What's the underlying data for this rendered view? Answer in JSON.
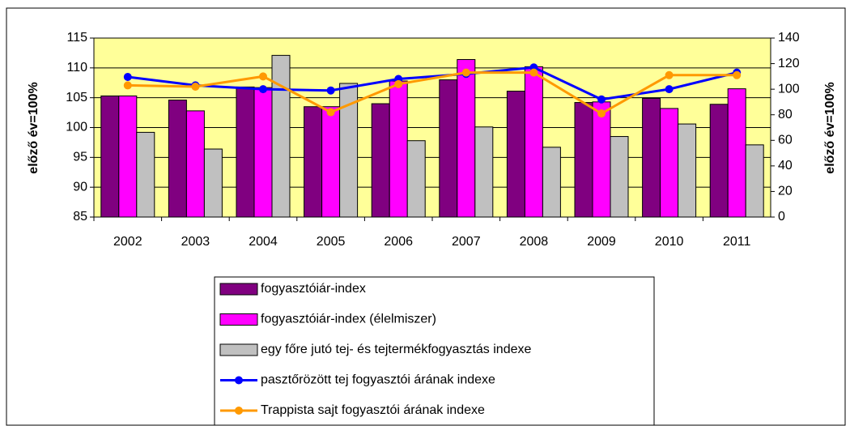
{
  "chart_data": {
    "type": "bar_line",
    "ylabel": "előző év=100%",
    "y2label": "előző év=100%",
    "categories": [
      "2002",
      "2003",
      "2004",
      "2005",
      "2006",
      "2007",
      "2008",
      "2009",
      "2010",
      "2011"
    ],
    "ylim": [
      85,
      115
    ],
    "yticks": [
      85,
      90,
      95,
      100,
      105,
      110,
      115
    ],
    "y2lim": [
      0,
      140
    ],
    "y2ticks": [
      0,
      20,
      40,
      60,
      80,
      100,
      120,
      140
    ],
    "series": [
      {
        "name": "fogyasztóiár-index",
        "type": "bar",
        "color": "#800080",
        "values": [
          105.3,
          104.6,
          106.8,
          103.5,
          104.0,
          108.0,
          106.1,
          104.2,
          104.9,
          103.9
        ]
      },
      {
        "name": "fogyasztóiár-index (élelmiszer)",
        "type": "bar",
        "color": "#ff00ff",
        "values": [
          105.3,
          102.8,
          106.7,
          103.5,
          107.8,
          111.4,
          110.2,
          104.3,
          103.2,
          106.5
        ]
      },
      {
        "name": "egy főre jutó tej- és tejtermékfogyasztás indexe",
        "type": "bar",
        "color": "#c0c0c0",
        "values": [
          99.2,
          96.4,
          112.1,
          107.4,
          97.8,
          100.1,
          96.7,
          98.5,
          100.6,
          97.1
        ]
      },
      {
        "name": "pasztőrözött tej fogyasztói árának indexe",
        "type": "line",
        "axis": "y2",
        "color": "#0000ff",
        "values": [
          109.6,
          103,
          100,
          99,
          108,
          112,
          117,
          92,
          100,
          113
        ]
      },
      {
        "name": "Trappista sajt fogyasztói árának indexe",
        "type": "line",
        "axis": "y2",
        "color": "#ff9900",
        "values": [
          103,
          102,
          110,
          82,
          104,
          113,
          113,
          81,
          111,
          111
        ]
      }
    ],
    "plot_background": "#ffff99"
  }
}
